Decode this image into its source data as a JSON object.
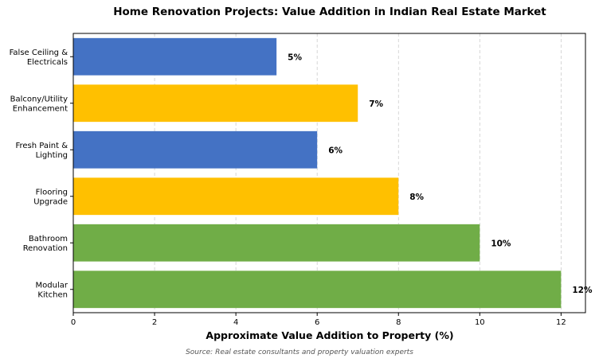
{
  "chart_data": {
    "type": "bar",
    "orientation": "horizontal",
    "title": "Home Renovation Projects: Value Addition in Indian Real Estate Market",
    "xlabel": "Approximate Value Addition to Property (%)",
    "ylabel": "",
    "xlim": [
      0,
      12.6
    ],
    "xticks": [
      0,
      2,
      4,
      6,
      8,
      10,
      12
    ],
    "grid": true,
    "bars": [
      {
        "category_lines": [
          "Modular",
          "Kitchen"
        ],
        "value": 12,
        "label": "12%",
        "color": "#70ad47"
      },
      {
        "category_lines": [
          "Bathroom",
          "Renovation"
        ],
        "value": 10,
        "label": "10%",
        "color": "#70ad47"
      },
      {
        "category_lines": [
          "Flooring",
          "Upgrade"
        ],
        "value": 8,
        "label": "8%",
        "color": "#ffc000"
      },
      {
        "category_lines": [
          "Fresh Paint &",
          "Lighting"
        ],
        "value": 6,
        "label": "6%",
        "color": "#4472c4"
      },
      {
        "category_lines": [
          "Balcony/Utility",
          "Enhancement"
        ],
        "value": 7,
        "label": "7%",
        "color": "#ffc000"
      },
      {
        "category_lines": [
          "False Ceiling &",
          "Electricals"
        ],
        "value": 5,
        "label": "5%",
        "color": "#4472c4"
      }
    ],
    "source": "Source: Real estate consultants and property valuation experts"
  }
}
